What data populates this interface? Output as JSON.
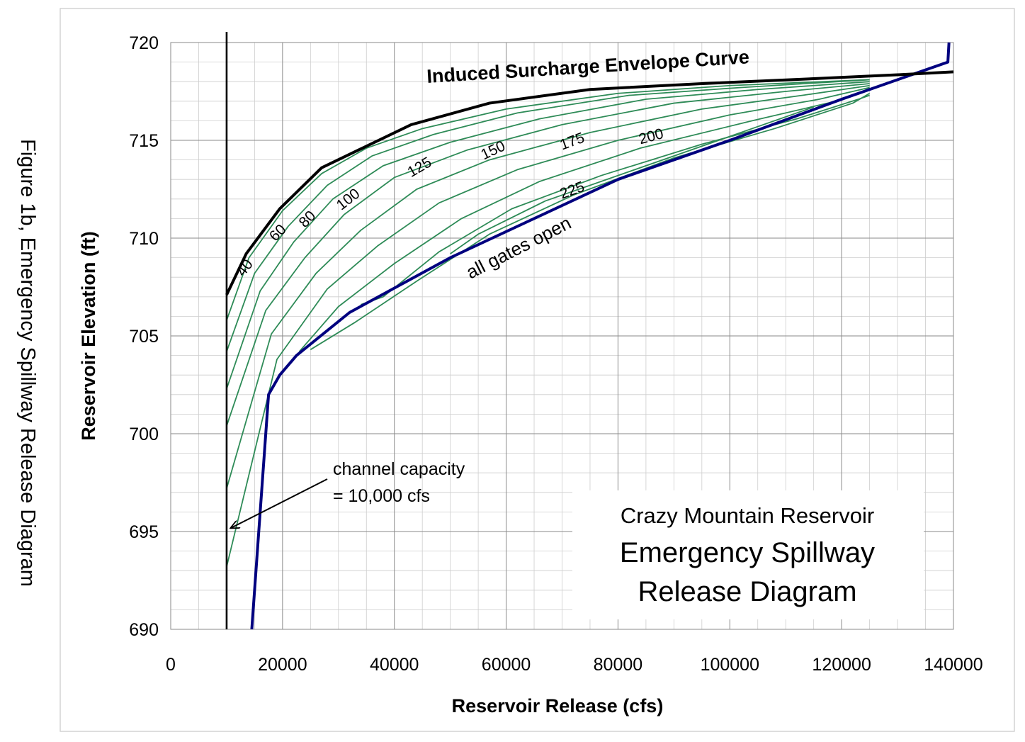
{
  "figure_caption": "Figure 1b, Emergency Spillway Release Diagram",
  "chart_data": {
    "type": "line",
    "xlabel": "Reservoir Release (cfs)",
    "ylabel": "Reservoir Elevation (ft)",
    "xlim": [
      0,
      140000
    ],
    "ylim": [
      690,
      720
    ],
    "x_ticks": [
      "0",
      "20000",
      "40000",
      "60000",
      "80000",
      "100000",
      "120000",
      "140000"
    ],
    "y_ticks": [
      "690",
      "695",
      "700",
      "705",
      "710",
      "715",
      "720"
    ],
    "grid": true,
    "title_box": {
      "line1": "Crazy Mountain Reservoir",
      "line2": "Emergency Spillway",
      "line3": "Release Diagram"
    },
    "channel_capacity": {
      "x": 10000,
      "line1": "channel capacity",
      "line2": "= 10,000 cfs"
    },
    "envelope": {
      "name": "Induced Surcharge Envelope Curve",
      "color": "#000000",
      "x": [
        10000,
        13500,
        19500,
        27000,
        35000,
        43000,
        57000,
        75000,
        95000,
        115000,
        130000,
        140000
      ],
      "y": [
        707.1,
        709.2,
        711.5,
        713.6,
        714.7,
        715.8,
        716.9,
        717.6,
        717.9,
        718.15,
        718.35,
        718.5
      ]
    },
    "all_gates": {
      "name": "all gates open",
      "color": "#00007f",
      "x": [
        14500,
        17500,
        19500,
        22500,
        32000,
        50000,
        80000,
        100000,
        120000,
        139000,
        139200
      ],
      "y": [
        690,
        702,
        703,
        704,
        706.2,
        709,
        713,
        715,
        717.1,
        719,
        720
      ]
    },
    "family_color": "#2e8b57",
    "family": [
      {
        "label": "40",
        "x": [
          10000,
          14000,
          20000,
          27000,
          35000,
          45000,
          60000,
          80000,
          100000,
          125000
        ],
        "y": [
          705.8,
          709,
          711.4,
          713.3,
          714.6,
          715.6,
          716.6,
          717.4,
          717.8,
          718.1
        ]
      },
      {
        "label": "60",
        "x": [
          10000,
          15000,
          21000,
          28000,
          36000,
          47000,
          62000,
          82000,
          102000,
          125000
        ],
        "y": [
          704.2,
          708.2,
          710.6,
          712.7,
          714.2,
          715.3,
          716.4,
          717.3,
          717.7,
          718.1
        ]
      },
      {
        "label": "80",
        "x": [
          10000,
          16000,
          22000,
          29000,
          38000,
          50000,
          66000,
          85000,
          105000,
          125000
        ],
        "y": [
          702.3,
          707.3,
          709.8,
          712,
          713.7,
          714.9,
          716.1,
          717.1,
          717.6,
          718
        ]
      },
      {
        "label": "100",
        "x": [
          10000,
          17000,
          24000,
          31000,
          40000,
          53000,
          70000,
          90000,
          110000,
          125000
        ],
        "y": [
          700.4,
          706.3,
          709,
          711.2,
          713.1,
          714.5,
          715.8,
          716.9,
          717.5,
          717.9
        ]
      },
      {
        "label": "",
        "x": [
          10000,
          18000,
          26000,
          34000,
          44000,
          57000,
          75000,
          95000,
          113000,
          125000
        ],
        "y": [
          697.2,
          705.1,
          708.2,
          710.4,
          712.5,
          714,
          715.4,
          716.6,
          717.3,
          717.8
        ]
      },
      {
        "label": "125",
        "x": [
          10000,
          19000,
          28000,
          37000,
          48000,
          62000,
          80000,
          100000,
          116000,
          125000
        ],
        "y": [
          693.2,
          703.8,
          707.4,
          709.6,
          711.8,
          713.5,
          715,
          716.3,
          717.1,
          717.7
        ]
      },
      {
        "label": "150",
        "x": [
          23000,
          30000,
          40000,
          52000,
          66000,
          84000,
          104000,
          119000,
          125000
        ],
        "y": [
          704.2,
          706.5,
          708.7,
          711,
          712.9,
          714.6,
          716,
          717,
          717.6
        ]
      },
      {
        "label": "175",
        "x": [
          25000,
          33000,
          44000,
          57000,
          72000,
          90000,
          108000,
          122000,
          125000
        ],
        "y": [
          704.3,
          705.7,
          707.8,
          710.2,
          712.2,
          714.1,
          715.6,
          716.9,
          717.4
        ]
      },
      {
        "label": "200",
        "x": [
          34000,
          38000,
          48000,
          61000,
          77000,
          95000,
          112000,
          123000,
          125000
        ],
        "y": [
          706.6,
          707,
          709.3,
          711.5,
          713.2,
          714.8,
          716.1,
          717.1,
          717.3
        ]
      },
      {
        "label": "225",
        "x": [
          50000,
          55000,
          67000,
          82000,
          98000,
          115000
        ],
        "y": [
          709.2,
          710.2,
          711.9,
          713.4,
          715,
          716.7
        ]
      }
    ],
    "curve_labels": [
      {
        "text": "40",
        "x": 13000,
        "y": 708.0,
        "angle": -52
      },
      {
        "text": "60",
        "x": 18700,
        "y": 709.8,
        "angle": -45
      },
      {
        "text": "80",
        "x": 24000,
        "y": 710.5,
        "angle": -45
      },
      {
        "text": "100",
        "x": 30500,
        "y": 711.4,
        "angle": -38
      },
      {
        "text": "125",
        "x": 43000,
        "y": 713.1,
        "angle": -30
      },
      {
        "text": "150",
        "x": 56000,
        "y": 714.0,
        "angle": -25
      },
      {
        "text": "175",
        "x": 70000,
        "y": 714.5,
        "angle": -20
      },
      {
        "text": "200",
        "x": 84000,
        "y": 714.8,
        "angle": -15
      },
      {
        "text": "225",
        "x": 70000,
        "y": 712.0,
        "angle": -20
      }
    ]
  }
}
